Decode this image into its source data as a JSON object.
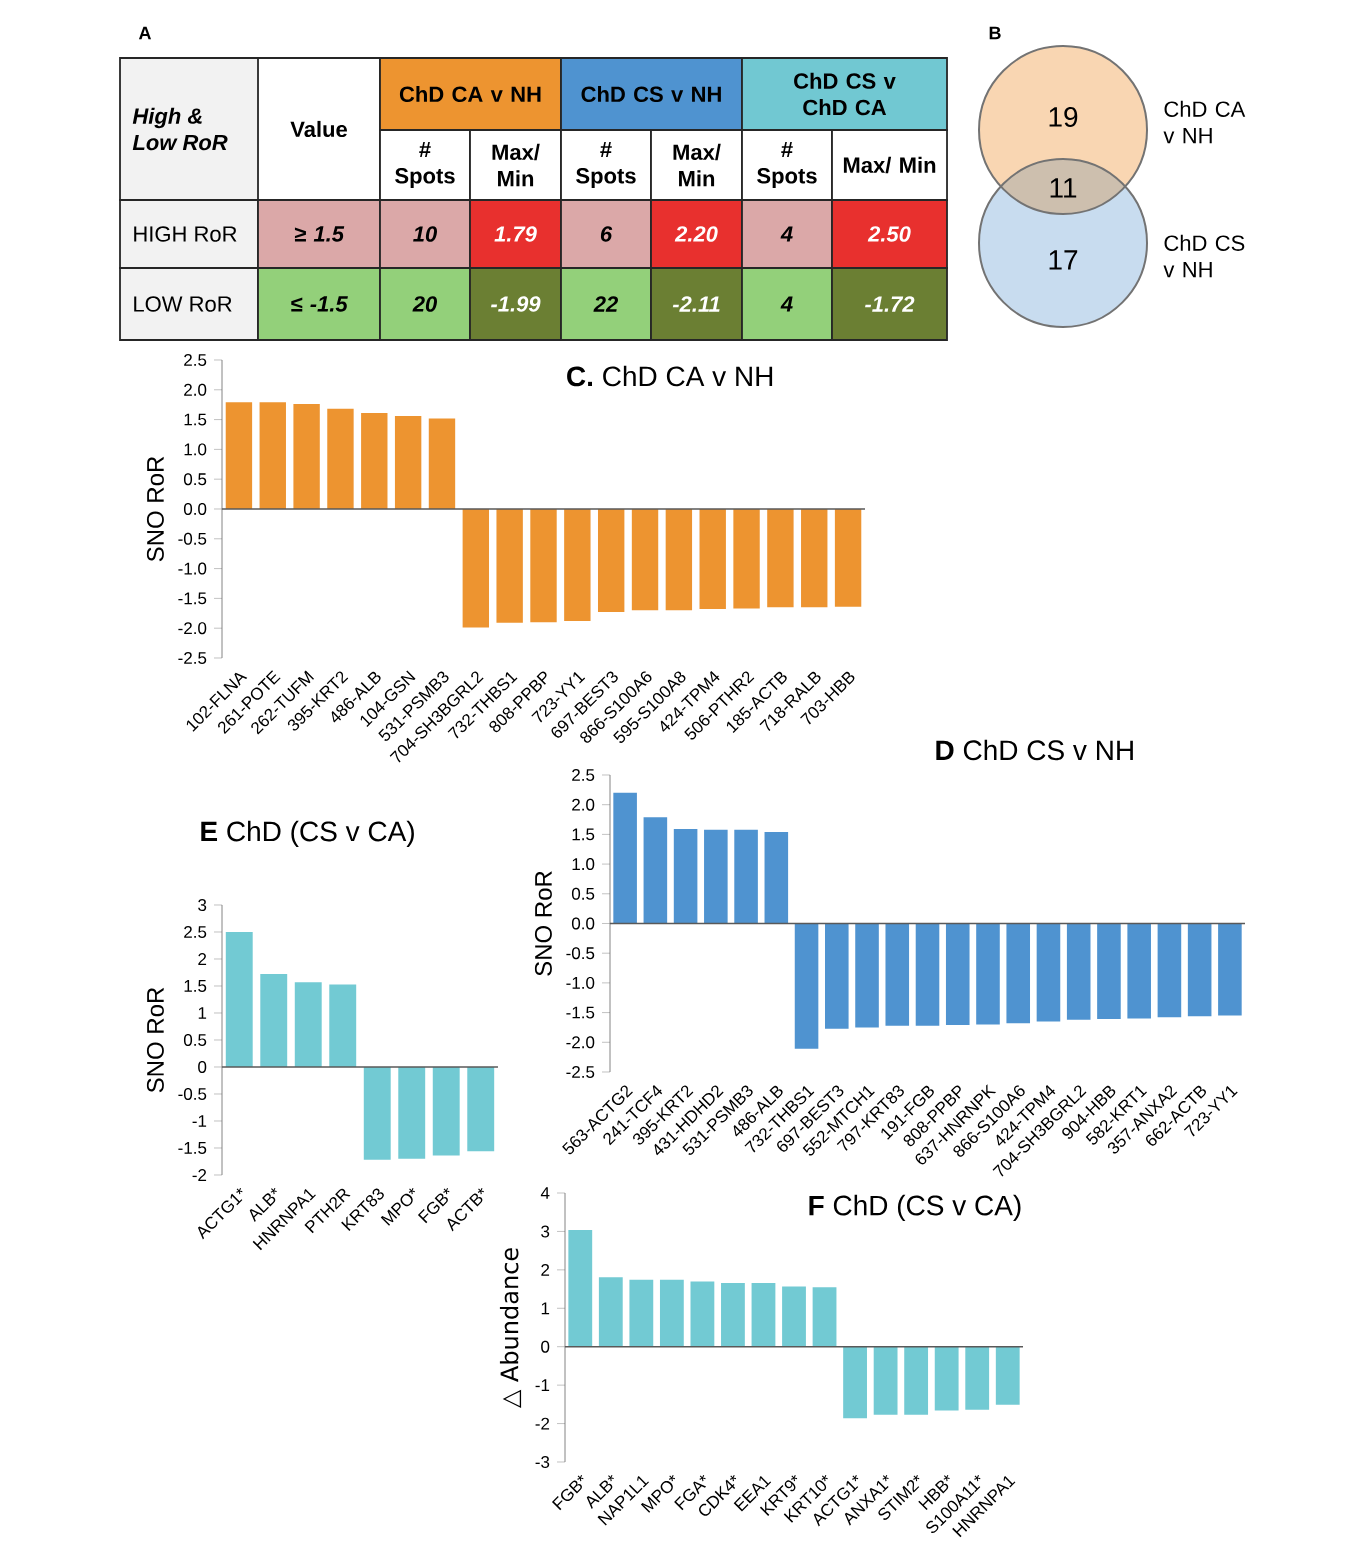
{
  "chart_data": [
    {
      "type": "other",
      "title": "A",
      "annotations": [
        "High & Low RoR",
        "Value",
        "ChD CA v NH",
        "ChD CS v NH",
        "ChD CS v ChD CA",
        "# Spots",
        "Max/ Min",
        "# Spots",
        "Max/ Min",
        "# Spots",
        "Max/ Min",
        "HIGH RoR",
        "≥ 1.5",
        "10",
        "1.79",
        "6",
        "2.20",
        "4",
        "2.50",
        "LOW RoR",
        "≤ -1.5",
        "20",
        "-1.99",
        "22",
        "-2.11",
        "4",
        "-1.72"
      ],
      "colors": [
        "#f2f2f2",
        "#ffffff",
        "#ed9430",
        "#4f93d0",
        "#71c8d2",
        "#ffffff",
        "#ffffff",
        "#ffffff",
        "#ffffff",
        "#ffffff",
        "#ffffff",
        "#f2f2f2",
        "#dba8a8",
        "#dba8a8",
        "#e8302e",
        "#dba8a8",
        "#e8302e",
        "#dba8a8",
        "#e8302e",
        "#f2f2f2",
        "#93d07a",
        "#93d07a",
        "#6b7f33",
        "#93d07a",
        "#6b7f33",
        "#93d07a",
        "#6b7f33"
      ]
    },
    {
      "type": "other",
      "title": "B",
      "categories": [
        "ChD CA v NH",
        null,
        "ChD CS v NH"
      ],
      "values": [
        19,
        11,
        17
      ],
      "data_labels": true,
      "value_labels": [
        "19",
        "11",
        "17"
      ],
      "colors": [
        "#f9d6b2",
        "#cdbfae",
        "#c8dcef"
      ]
    },
    {
      "type": "bar",
      "title": "**C.** ChD CA v NH",
      "ylabel": "SNO RoR",
      "color": "#ed9430",
      "categories": [
        "102-FLNA",
        "261-POTE",
        "262-TUFM",
        "395-KRT2",
        "486-ALB",
        "104-GSN",
        "531-PSMB3",
        "704-SH3BGRL2",
        "732-THBS1",
        "808-PPBP",
        "723-YY1",
        "697-BEST3",
        "866-S100A6",
        "595-S100A8",
        "424-TPM4",
        "506-PTHR2",
        "185-ACTB",
        "718-RALB",
        "703-HBB"
      ],
      "values": [
        1.79,
        1.79,
        1.76,
        1.68,
        1.61,
        1.56,
        1.52,
        -1.99,
        -1.91,
        -1.9,
        -1.88,
        -1.73,
        -1.7,
        -1.7,
        -1.68,
        -1.67,
        -1.65,
        -1.65,
        -1.64
      ],
      "ylim": [
        -2.5,
        2.5
      ],
      "yticks": [
        -2.5,
        {
          "value": -2,
          "label": "-2.0"
        },
        -1.5,
        {
          "value": -1,
          "label": "-1.0"
        },
        -0.5,
        {
          "value": 0,
          "label": "0.0"
        },
        0.5,
        {
          "value": 1,
          "label": "1.0"
        },
        1.5,
        {
          "value": 2,
          "label": "2.0"
        },
        2.5
      ]
    },
    {
      "type": "bar",
      "title": "**D** ChD CS v NH",
      "ylabel": "SNO RoR",
      "color": "#4f93d0",
      "categories": [
        "563-ACTG2",
        "241-TCF4",
        "395-KRT2",
        "431-HDHD2",
        "531-PSMB3",
        "486-ALB",
        "732-THBS1",
        "697-BEST3",
        "552-MTCH1",
        "797-KRT83",
        "191-FGB",
        "808-PPBP",
        "637-HNRNPK",
        "866-S100A6",
        "424-TPM4",
        "704-SH3BGRL2",
        "904-HBB",
        "582-KRT1",
        "357-ANXA2",
        "662-ACTB",
        "723-YY1"
      ],
      "values": [
        2.2,
        1.79,
        1.59,
        1.58,
        1.58,
        1.54,
        -2.11,
        -1.77,
        -1.75,
        -1.72,
        -1.72,
        -1.71,
        -1.7,
        -1.68,
        -1.65,
        -1.62,
        -1.61,
        -1.6,
        -1.58,
        -1.56,
        -1.55
      ],
      "ylim": [
        -2.5,
        2.5
      ],
      "yticks": [
        -2.5,
        {
          "value": -2,
          "label": "-2.0"
        },
        -1.5,
        {
          "value": -1,
          "label": "-1.0"
        },
        -0.5,
        {
          "value": 0,
          "label": "0.0"
        },
        0.5,
        {
          "value": 1,
          "label": "1.0"
        },
        1.5,
        {
          "value": 2,
          "label": "2.0"
        },
        2.5
      ]
    },
    {
      "type": "bar",
      "title": "**E** ChD (CS v CA)",
      "ylabel": "SNO RoR",
      "color": "#72cad3",
      "categories": [
        "ACTG1*",
        "ALB*",
        "HNRNPA1",
        "PTH2R",
        "KRT83",
        "MPO*",
        "FGB*",
        "ACTB*"
      ],
      "values": [
        2.5,
        1.72,
        1.57,
        1.53,
        -1.72,
        -1.7,
        -1.64,
        -1.56
      ],
      "ylim": [
        -2,
        3
      ],
      "yticks": [
        -2,
        -1.5,
        -1,
        -0.5,
        0,
        0.5,
        1,
        1.5,
        2,
        2.5,
        3
      ]
    },
    {
      "type": "bar",
      "title": "**F** ChD (CS v CA)",
      "ylabel": "△ Abundance",
      "color": "#72cad3",
      "categories": [
        "FGB*",
        "ALB*",
        "NAP1L1",
        "MPO*",
        "FGA*",
        "CDK4*",
        "EEA1",
        "KRT9*",
        "KRT10*",
        "ACTG1*",
        "ANXA1*",
        "STIM2*",
        "HBB*",
        "S100A11*",
        "HNRNPA1"
      ],
      "values": [
        3.04,
        1.81,
        1.74,
        1.74,
        1.7,
        1.66,
        1.66,
        1.57,
        1.55,
        -1.86,
        -1.77,
        -1.77,
        -1.66,
        -1.64,
        -1.51
      ],
      "ylim": [
        -3,
        4
      ],
      "yticks": [
        -3,
        -2,
        -1,
        0,
        1,
        2,
        3,
        4
      ]
    }
  ]
}
